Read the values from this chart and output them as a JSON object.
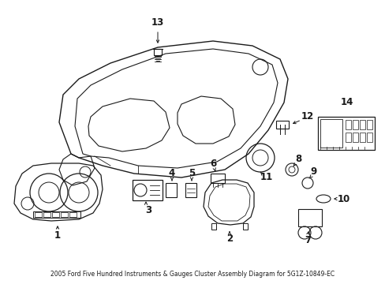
{
  "background_color": "#ffffff",
  "line_color": "#1a1a1a",
  "fig_width": 4.89,
  "fig_height": 3.6,
  "dpi": 100,
  "fontsize": 8.5,
  "fontsize_small": 7
}
